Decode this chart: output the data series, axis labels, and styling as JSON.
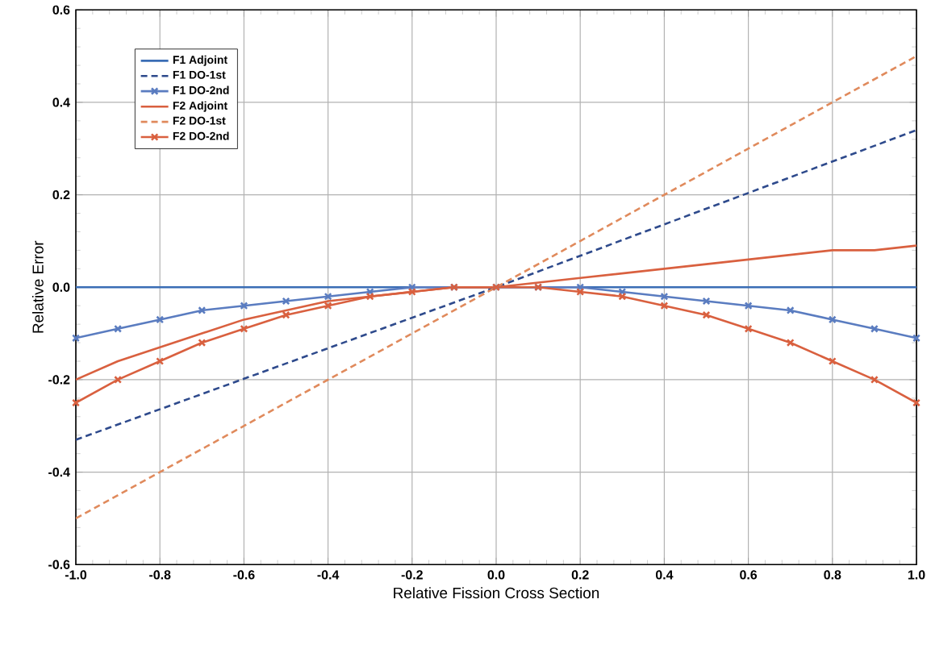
{
  "chart_data": {
    "type": "line",
    "xlabel": "Relative Fission Cross Section",
    "ylabel": "Relative Error",
    "xlim": [
      -1,
      1
    ],
    "ylim": [
      -0.6,
      0.6
    ],
    "xticks": [
      {
        "value": -1,
        "label": "-1.0"
      },
      {
        "value": -0.8,
        "label": "-0.8"
      },
      {
        "value": -0.6,
        "label": "-0.6"
      },
      {
        "value": -0.4,
        "label": "-0.4"
      },
      {
        "value": -0.2,
        "label": "-0.2"
      },
      {
        "value": 0,
        "label": "0.0"
      },
      {
        "value": 0.2,
        "label": "0.2"
      },
      {
        "value": 0.4,
        "label": "0.4"
      },
      {
        "value": 0.6,
        "label": "0.6"
      },
      {
        "value": 0.8,
        "label": "0.8"
      },
      {
        "value": 1,
        "label": "1.0"
      }
    ],
    "yticks": [
      {
        "value": -0.6,
        "label": "-0.6"
      },
      {
        "value": -0.4,
        "label": "-0.4"
      },
      {
        "value": -0.2,
        "label": "-0.2"
      },
      {
        "value": 0,
        "label": "0.0"
      },
      {
        "value": 0.2,
        "label": "0.2"
      },
      {
        "value": 0.4,
        "label": "0.4"
      },
      {
        "value": 0.6,
        "label": "0.6"
      }
    ],
    "grid": true,
    "legend": "top left",
    "series": [
      {
        "name": "F1 Adjoint",
        "color": "#3a6db5",
        "line_style": "solid",
        "marker": "none",
        "x": [
          -1,
          1
        ],
        "values": [
          0,
          0
        ]
      },
      {
        "name": "F1 DO-1st",
        "color": "#2e4a8c",
        "line_style": "dashed",
        "marker": "none",
        "x": [
          -1,
          0,
          1
        ],
        "values": [
          -0.33,
          0,
          0.34
        ]
      },
      {
        "name": "F1 DO-2nd",
        "color": "#5a7cc0",
        "line_style": "solid",
        "marker": "cross",
        "x": [
          -1,
          -0.9,
          -0.8,
          -0.7,
          -0.6,
          -0.5,
          -0.4,
          -0.3,
          -0.2,
          -0.1,
          0,
          0.1,
          0.2,
          0.3,
          0.4,
          0.5,
          0.6,
          0.7,
          0.8,
          0.9,
          1
        ],
        "values": [
          -0.11,
          -0.09,
          -0.07,
          -0.05,
          -0.04,
          -0.03,
          -0.02,
          -0.01,
          0,
          0,
          0,
          0,
          0,
          -0.01,
          -0.02,
          -0.03,
          -0.04,
          -0.05,
          -0.07,
          -0.09,
          -0.11
        ]
      },
      {
        "name": "F2 Adjoint",
        "color": "#d9603f",
        "line_style": "solid",
        "marker": "none",
        "x": [
          -1,
          -0.9,
          -0.8,
          -0.7,
          -0.6,
          -0.5,
          -0.4,
          -0.3,
          -0.2,
          -0.1,
          0,
          0.1,
          0.2,
          0.3,
          0.4,
          0.5,
          0.6,
          0.7,
          0.8,
          0.9,
          1
        ],
        "values": [
          -0.2,
          -0.16,
          -0.13,
          -0.1,
          -0.07,
          -0.05,
          -0.03,
          -0.02,
          -0.01,
          0,
          0,
          0.01,
          0.02,
          0.03,
          0.04,
          0.05,
          0.06,
          0.07,
          0.08,
          0.08,
          0.09
        ]
      },
      {
        "name": "F2 DO-1st",
        "color": "#e08a5c",
        "line_style": "dashed",
        "marker": "none",
        "x": [
          -1,
          0,
          1
        ],
        "values": [
          -0.5,
          0,
          0.5
        ]
      },
      {
        "name": "F2 DO-2nd",
        "color": "#d9603f",
        "line_style": "solid",
        "marker": "cross",
        "x": [
          -1,
          -0.9,
          -0.8,
          -0.7,
          -0.6,
          -0.5,
          -0.4,
          -0.3,
          -0.2,
          -0.1,
          0,
          0.1,
          0.2,
          0.3,
          0.4,
          0.5,
          0.6,
          0.7,
          0.8,
          0.9,
          1
        ],
        "values": [
          -0.25,
          -0.2,
          -0.16,
          -0.12,
          -0.09,
          -0.06,
          -0.04,
          -0.02,
          -0.01,
          0,
          0,
          0,
          -0.01,
          -0.02,
          -0.04,
          -0.06,
          -0.09,
          -0.12,
          -0.16,
          -0.2,
          -0.25
        ]
      }
    ]
  }
}
